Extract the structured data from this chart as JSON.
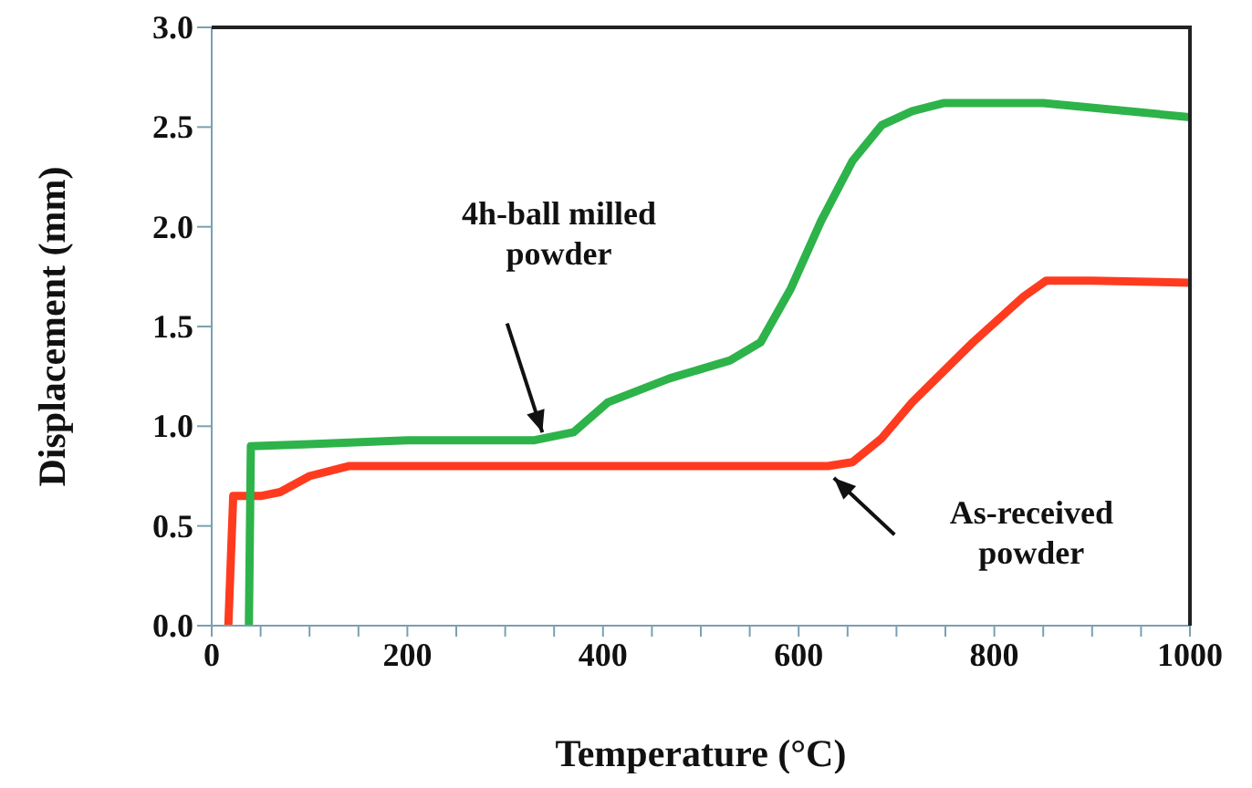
{
  "chart_data": {
    "type": "line",
    "xlabel": "Temperature (°C)",
    "ylabel": "Displacement (mm)",
    "xlim": [
      0,
      1000
    ],
    "ylim": [
      0,
      3
    ],
    "xticks": [
      0,
      {
        "value": 50,
        "label": null
      },
      {
        "value": 100,
        "label": null
      },
      {
        "value": 150,
        "label": null
      },
      200,
      {
        "value": 250,
        "label": null
      },
      {
        "value": 300,
        "label": null
      },
      {
        "value": 350,
        "label": null
      },
      400,
      {
        "value": 450,
        "label": null
      },
      {
        "value": 500,
        "label": null
      },
      {
        "value": 550,
        "label": null
      },
      600,
      {
        "value": 650,
        "label": null
      },
      {
        "value": 700,
        "label": null
      },
      {
        "value": 750,
        "label": null
      },
      800,
      {
        "value": 850,
        "label": null
      },
      {
        "value": 900,
        "label": null
      },
      {
        "value": 950,
        "label": null
      },
      1000
    ],
    "yticks": [
      {
        "value": 0,
        "label": "0.0"
      },
      {
        "value": 0.5,
        "label": "0.5"
      },
      {
        "value": 1,
        "label": "1.0"
      },
      {
        "value": 1.5,
        "label": "1.5"
      },
      {
        "value": 2,
        "label": "2.0"
      },
      {
        "value": 2.5,
        "label": "2.5"
      },
      {
        "value": 3,
        "label": "3.0"
      }
    ],
    "marker": "none",
    "line_style": "solid",
    "series": [
      {
        "color": "#ff3b1f",
        "x": [
          17,
          22,
          50,
          70,
          100,
          140,
          300,
          500,
          630,
          655,
          685,
          716,
          778,
          830,
          853,
          900,
          1000
        ],
        "values": [
          0,
          0.65,
          0.65,
          0.67,
          0.75,
          0.8,
          0.8,
          0.8,
          0.8,
          0.82,
          0.94,
          1.12,
          1.42,
          1.65,
          1.73,
          1.73,
          1.72
        ]
      },
      {
        "color": "#2db34a",
        "x": [
          38,
          40,
          100,
          200,
          330,
          370,
          405,
          468,
          530,
          561,
          592,
          623,
          655,
          685,
          716,
          748,
          850,
          1000
        ],
        "values": [
          0,
          0.9,
          0.91,
          0.93,
          0.93,
          0.97,
          1.12,
          1.24,
          1.33,
          1.42,
          1.69,
          2.03,
          2.33,
          2.51,
          2.58,
          2.62,
          2.62,
          2.55
        ]
      }
    ],
    "annotations": [
      "4h-ball milled\npowder",
      "As-received\npowder"
    ]
  }
}
